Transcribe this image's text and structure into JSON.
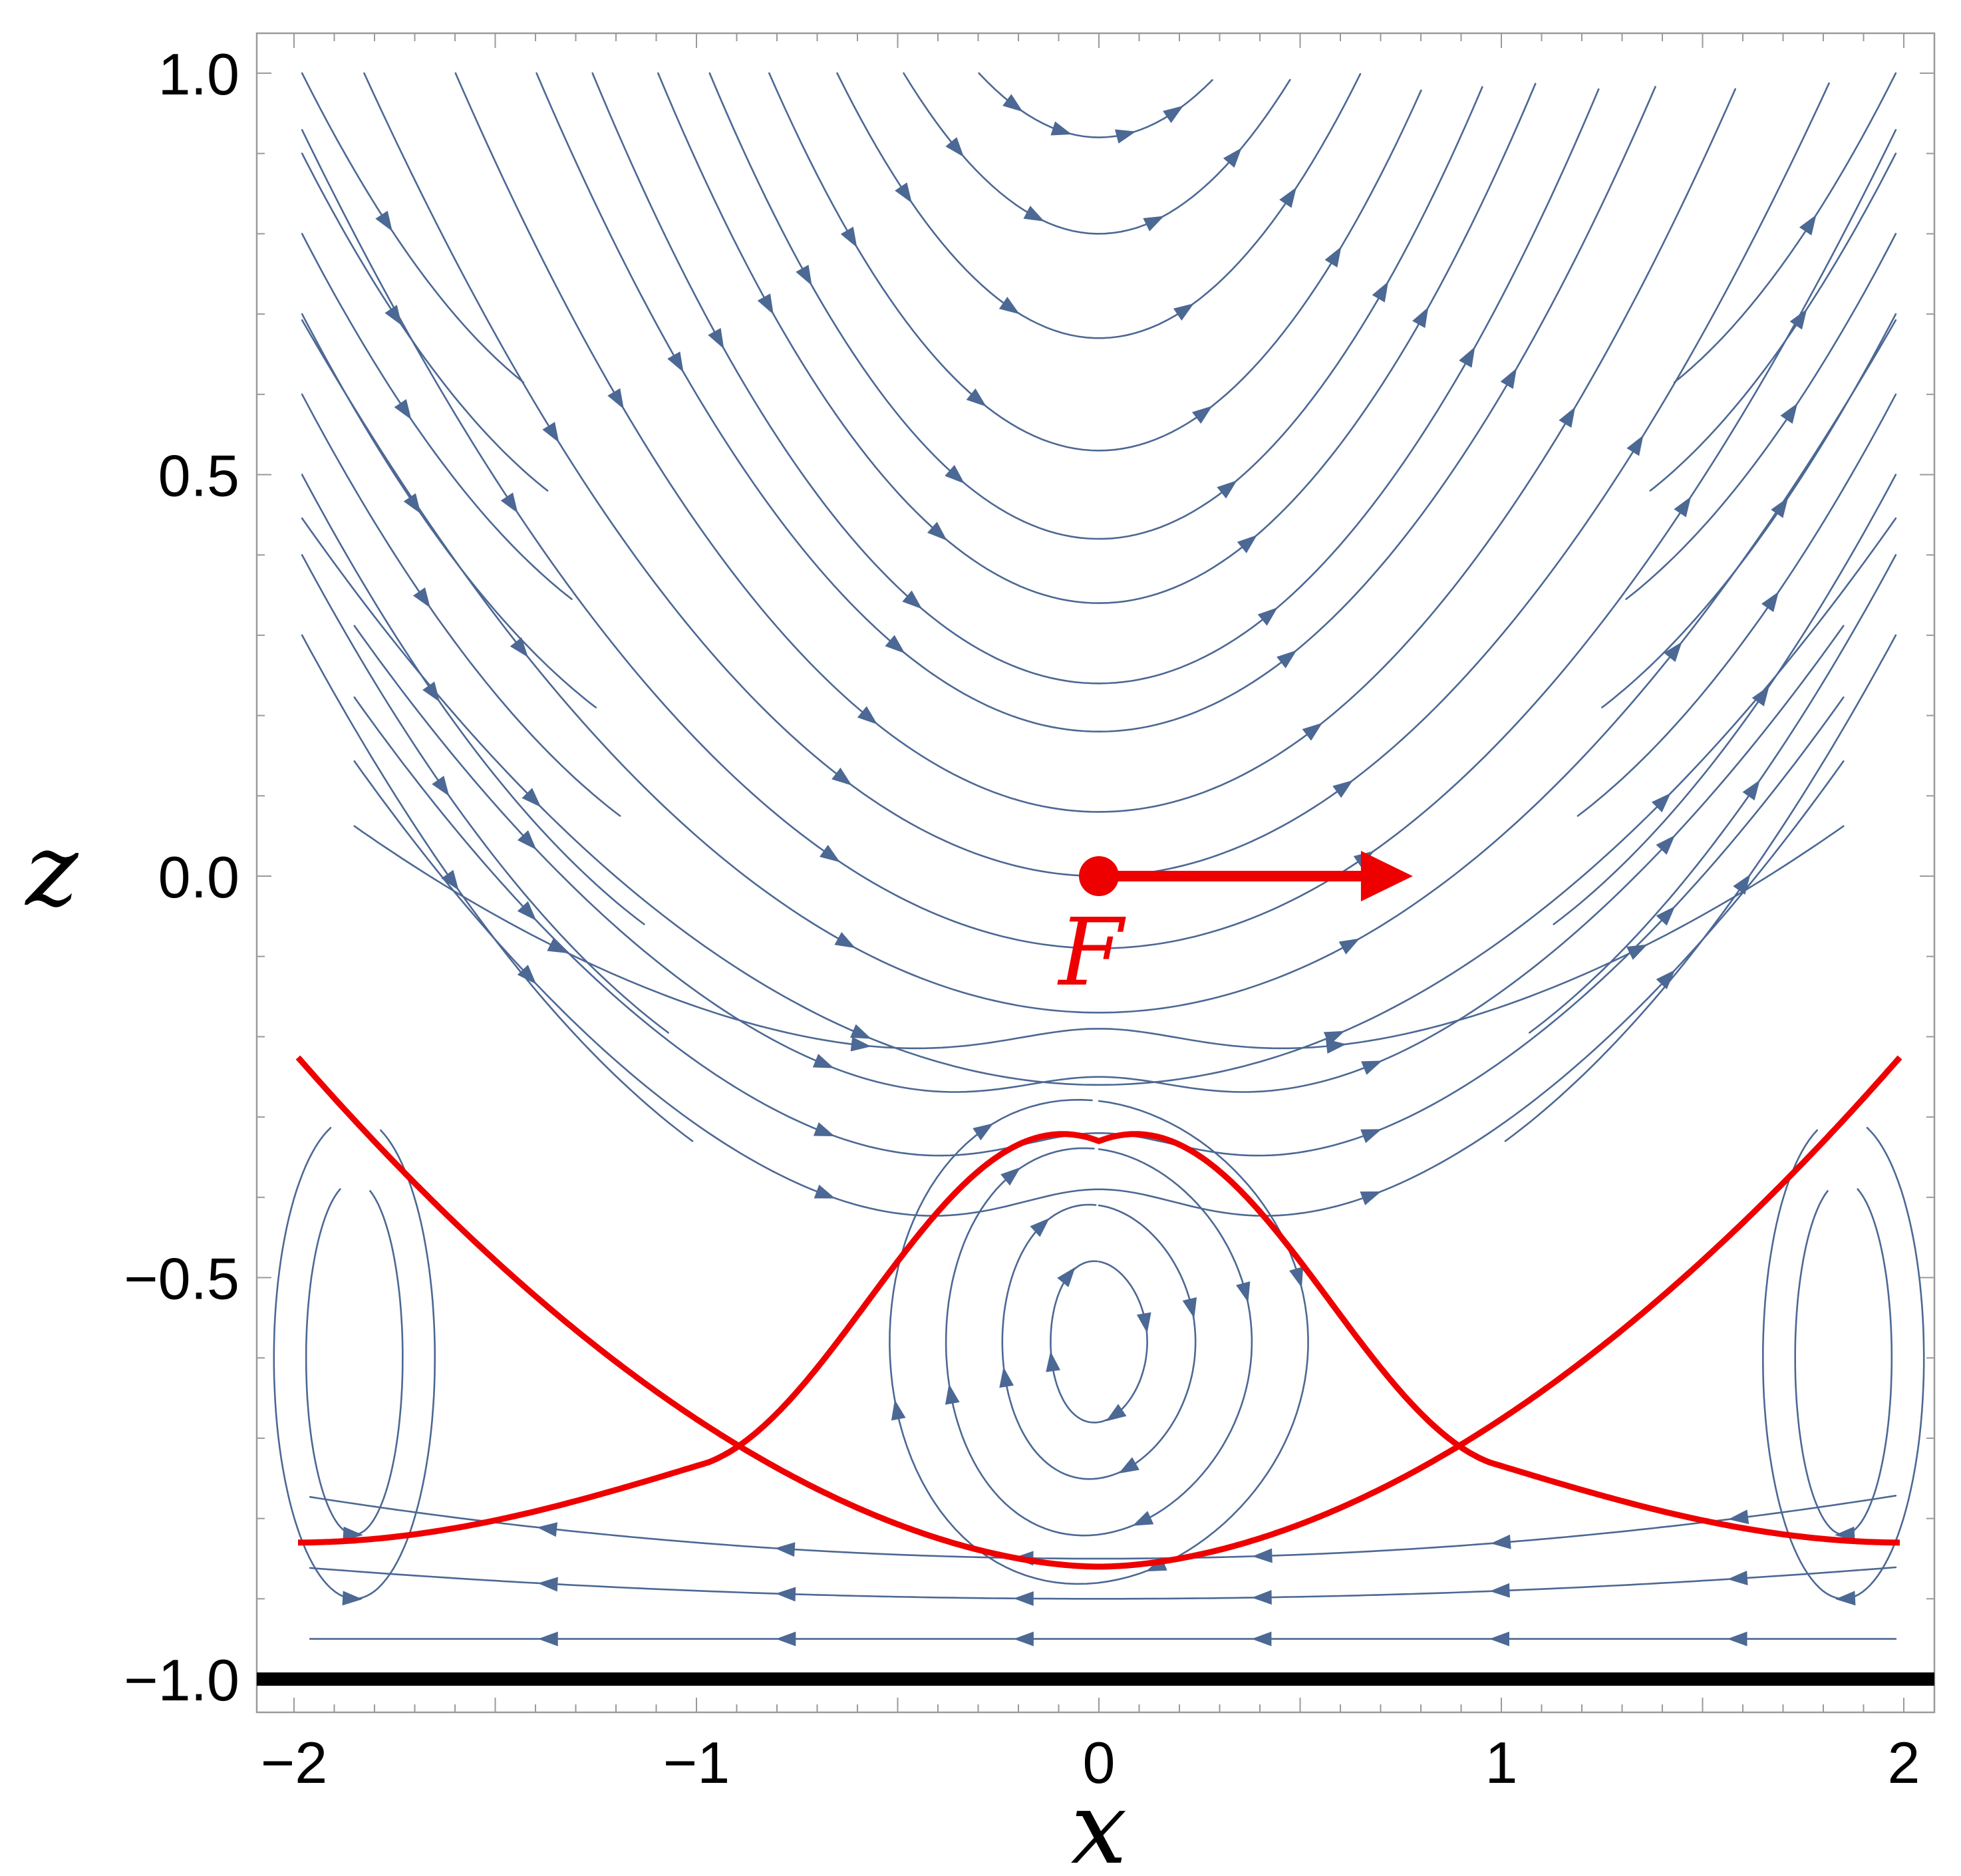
{
  "plot": {
    "type": "streamline",
    "x_range": [
      -2,
      2
    ],
    "z_range": [
      -1,
      1
    ],
    "x_label": "x",
    "z_label": "z",
    "x_ticks": [
      {
        "value": -2,
        "label": "−2"
      },
      {
        "value": -1,
        "label": "−1"
      },
      {
        "value": 0,
        "label": "0"
      },
      {
        "value": 1,
        "label": "1"
      },
      {
        "value": 2,
        "label": "2"
      }
    ],
    "z_ticks": [
      {
        "value": 1,
        "label": "1.0"
      },
      {
        "value": 0.5,
        "label": "0.5"
      },
      {
        "value": 0,
        "label": "0.0"
      },
      {
        "value": -0.5,
        "label": "−0.5"
      },
      {
        "value": -1,
        "label": "−1.0"
      }
    ],
    "wall": {
      "z": -1
    },
    "force": {
      "label": "F",
      "x": 0,
      "z": 0,
      "direction": "+x",
      "arrow_length": 0.78
    },
    "separatrix": {
      "x_stagnation": [
        -0.97,
        0.97
      ],
      "z_stagnation": -0.73,
      "dome_top_z": -0.33,
      "valley_bottom_z": -0.86,
      "edge_z_high": -0.22,
      "edge_z_low": -0.83
    },
    "vortex_center": {
      "x": 0,
      "z": -0.58
    }
  },
  "colors": {
    "stream": "#4c6894",
    "separatrix": "#ee0000",
    "force": "#ee0000",
    "wall": "#000000",
    "frame": "#9a9a9a"
  }
}
